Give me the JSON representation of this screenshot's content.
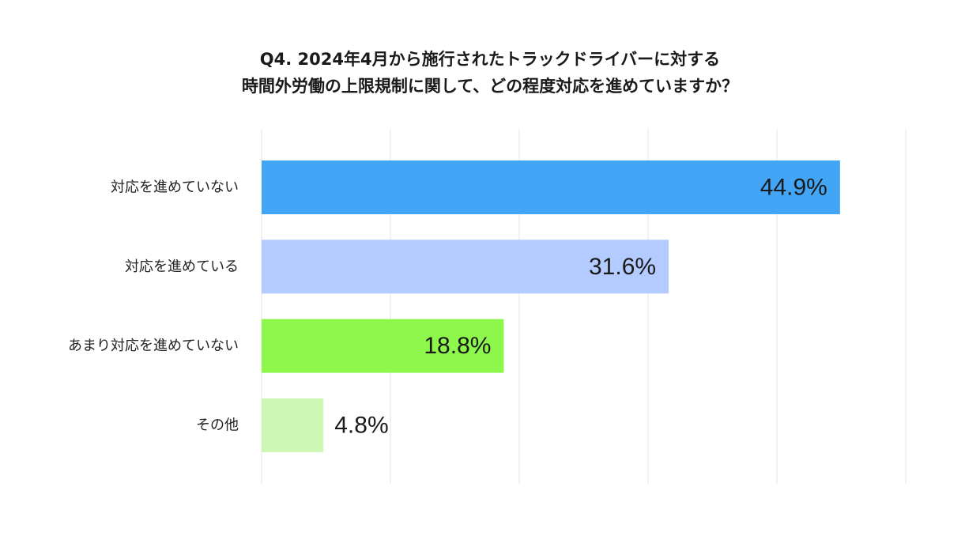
{
  "chart_data": {
    "type": "bar",
    "orientation": "horizontal",
    "title": [
      "Q4. 2024年4月から施行されたトラックドライバーに対する",
      "時間外労働の上限規制に関して、どの程度対応を進めていますか？"
    ],
    "categories": [
      "対応を進めていない",
      "対応を進めている",
      "あまり対応を進めていない",
      "その他"
    ],
    "values": [
      44.9,
      31.6,
      18.8,
      4.8
    ],
    "value_labels": [
      "44.9%",
      "31.6%",
      "18.8%",
      "4.8%"
    ],
    "bar_colors": [
      "#42a5f5",
      "#b3cbff",
      "#8ef74c",
      "#cdf8b4"
    ],
    "xlim": [
      0,
      50
    ],
    "x_gridlines": [
      0,
      10,
      20,
      30,
      40,
      50
    ],
    "grid": true,
    "legend": "none",
    "xlabel": "",
    "ylabel": ""
  }
}
